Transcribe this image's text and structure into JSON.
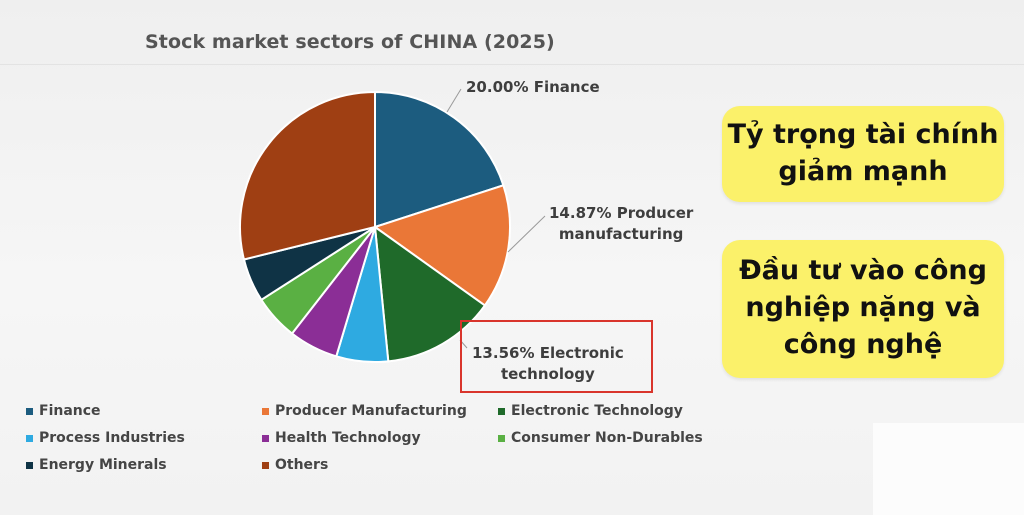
{
  "chart_data": {
    "type": "pie",
    "title": "Stock market sectors of CHINA (2025)",
    "slices": [
      {
        "label": "Finance",
        "value": 20.0,
        "color": "#1c5c7f"
      },
      {
        "label": "Producer Manufacturing",
        "value": 14.87,
        "color": "#ea7737"
      },
      {
        "label": "Electronic Technology",
        "value": 13.56,
        "color": "#1f6a2a"
      },
      {
        "label": "Process Industries",
        "value": 6.2,
        "color": "#2eaae1"
      },
      {
        "label": "Health Technology",
        "value": 5.9,
        "color": "#8b2e96"
      },
      {
        "label": "Consumer Non-Durables",
        "value": 5.4,
        "color": "#5ab043"
      },
      {
        "label": "Energy Minerals",
        "value": 5.2,
        "color": "#0f3345"
      },
      {
        "label": "Others",
        "value": 28.87,
        "color": "#9f3f13"
      }
    ],
    "data_labels": {
      "finance": "20.00% Finance",
      "producer_line1": "14.87% Producer",
      "producer_line2": "manufacturing",
      "electronic_line1": "13.56% Electronic",
      "electronic_line2": "technology"
    },
    "legend_placement": "bottom",
    "highlight": "Electronic Technology"
  },
  "notes": {
    "note1": {
      "line1": "Tỷ trọng tài chính",
      "line2": "giảm mạnh"
    },
    "note2": {
      "line1": "Đầu tư vào công",
      "line2": "nghiệp nặng và",
      "line3": "công nghệ"
    },
    "background": "#fbf16a"
  }
}
